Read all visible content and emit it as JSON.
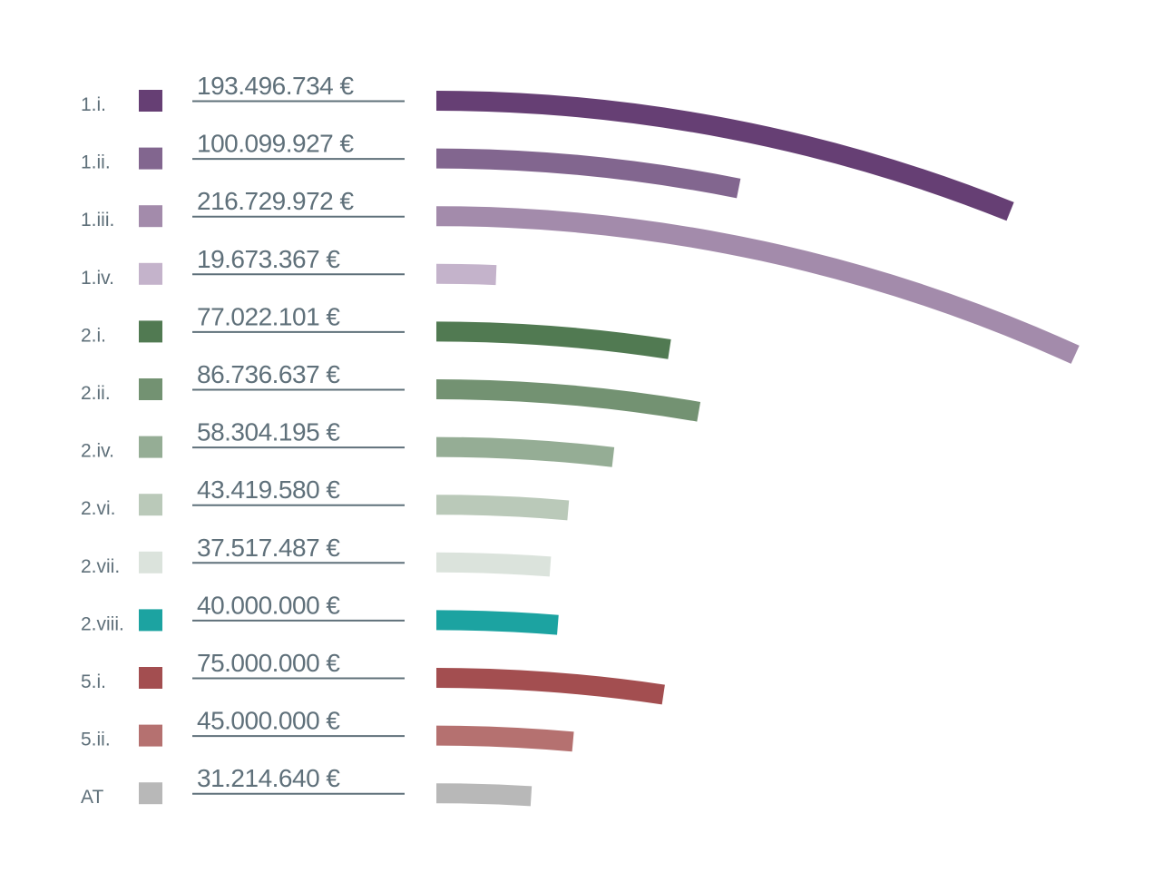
{
  "chart_data": {
    "type": "bar",
    "orientation": "horizontal-arc",
    "title": "",
    "xlabel": "",
    "ylabel": "",
    "unit": "€",
    "categories": [
      "1.i.",
      "1.ii.",
      "1.iii.",
      "1.iv.",
      "2.i.",
      "2.ii.",
      "2.iv.",
      "2.vi.",
      "2.vii.",
      "2.viii.",
      "5.i.",
      "5.ii.",
      "AT"
    ],
    "values": [
      193496734,
      100099927,
      216729972,
      19673367,
      77022101,
      86736637,
      58304195,
      43419580,
      37517487,
      40000000,
      75000000,
      45000000,
      31214640
    ],
    "labels": [
      "193.496.734 €",
      "100.099.927 €",
      "216.729.972 €",
      "19.673.367 €",
      "77.022.101 €",
      "86.736.637 €",
      "58.304.195 €",
      "43.419.580 €",
      "37.517.487 €",
      "40.000.000 €",
      "75.000.000 €",
      "45.000.000 €",
      "31.214.640 €"
    ],
    "colors": [
      "#663f74",
      "#82668f",
      "#a38bab",
      "#c4b3cb",
      "#517a52",
      "#739272",
      "#95ad95",
      "#bac9b9",
      "#dbe3dc",
      "#1ca3a1",
      "#a34e50",
      "#b57170",
      "#b8b8b8"
    ],
    "legend": "left",
    "grid": false
  }
}
